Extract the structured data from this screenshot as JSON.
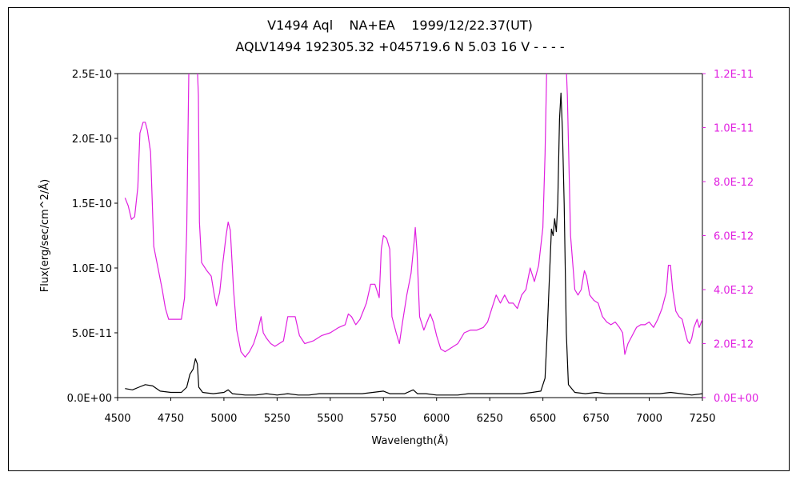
{
  "chart_data": {
    "type": "line",
    "title": "V1494 Aql    NA+EA    1999/12/22.37(UT)",
    "subtitle": "AQLV1494 192305.32 +045719.6 N 5.03 16 V - - - -",
    "xlabel": "Wavelength(Å)",
    "ylabel": "Flux(erg/sec/cm^2/Å)",
    "xlim": [
      4500,
      7250
    ],
    "ylim": [
      0,
      2.5e-10
    ],
    "y2lim": [
      0,
      1.2e-11
    ],
    "x_ticks": [
      "4500",
      "4750",
      "5000",
      "5250",
      "5500",
      "5750",
      "6000",
      "6250",
      "6500",
      "6750",
      "7000",
      "7250"
    ],
    "y_ticks": [
      "0.0E+00",
      "5.0E-11",
      "1.0E-10",
      "1.5E-10",
      "2.0E-10",
      "2.5E-10"
    ],
    "y2_ticks": [
      "0.0E+00",
      "2.0E-12",
      "4.0E-12",
      "6.0E-12",
      "8.0E-12",
      "1.0E-11",
      "1.2E-11"
    ],
    "grid": false,
    "colors": {
      "primary": "#000000",
      "secondary": "#e020e0",
      "axis": "#000000"
    },
    "series": [
      {
        "axis": "left",
        "color": "#000000",
        "points": [
          [
            4535,
            7e-12
          ],
          [
            4570,
            6e-12
          ],
          [
            4600,
            8e-12
          ],
          [
            4630,
            1e-11
          ],
          [
            4665,
            9e-12
          ],
          [
            4700,
            5e-12
          ],
          [
            4750,
            4e-12
          ],
          [
            4800,
            4e-12
          ],
          [
            4825,
            8e-12
          ],
          [
            4840,
            1.8e-11
          ],
          [
            4855,
            2.2e-11
          ],
          [
            4866,
            3e-11
          ],
          [
            4875,
            2.6e-11
          ],
          [
            4882,
            8e-12
          ],
          [
            4900,
            4e-12
          ],
          [
            4950,
            3e-12
          ],
          [
            5000,
            4e-12
          ],
          [
            5020,
            6e-12
          ],
          [
            5040,
            3e-12
          ],
          [
            5100,
            2e-12
          ],
          [
            5150,
            2e-12
          ],
          [
            5200,
            3e-12
          ],
          [
            5250,
            2e-12
          ],
          [
            5300,
            3e-12
          ],
          [
            5350,
            2e-12
          ],
          [
            5400,
            2e-12
          ],
          [
            5450,
            3e-12
          ],
          [
            5500,
            3e-12
          ],
          [
            5550,
            3e-12
          ],
          [
            5600,
            3e-12
          ],
          [
            5650,
            3e-12
          ],
          [
            5700,
            4e-12
          ],
          [
            5750,
            5e-12
          ],
          [
            5780,
            3e-12
          ],
          [
            5850,
            3e-12
          ],
          [
            5890,
            6e-12
          ],
          [
            5910,
            3e-12
          ],
          [
            5950,
            3e-12
          ],
          [
            6000,
            2e-12
          ],
          [
            6050,
            2e-12
          ],
          [
            6100,
            2e-12
          ],
          [
            6150,
            3e-12
          ],
          [
            6200,
            3e-12
          ],
          [
            6250,
            3e-12
          ],
          [
            6300,
            3e-12
          ],
          [
            6350,
            3e-12
          ],
          [
            6400,
            3e-12
          ],
          [
            6450,
            4e-12
          ],
          [
            6490,
            5e-12
          ],
          [
            6510,
            1.5e-11
          ],
          [
            6520,
            5e-11
          ],
          [
            6530,
            9e-11
          ],
          [
            6540,
            1.3e-10
          ],
          [
            6548,
            1.25e-10
          ],
          [
            6555,
            1.38e-10
          ],
          [
            6563,
            1.28e-10
          ],
          [
            6570,
            1.5e-10
          ],
          [
            6578,
            2.15e-10
          ],
          [
            6585,
            2.35e-10
          ],
          [
            6592,
            2.05e-10
          ],
          [
            6600,
            1.5e-10
          ],
          [
            6610,
            5e-11
          ],
          [
            6620,
            1e-11
          ],
          [
            6650,
            4e-12
          ],
          [
            6700,
            3e-12
          ],
          [
            6750,
            4e-12
          ],
          [
            6800,
            3e-12
          ],
          [
            6850,
            3e-12
          ],
          [
            6900,
            3e-12
          ],
          [
            6950,
            3e-12
          ],
          [
            7000,
            3e-12
          ],
          [
            7050,
            3e-12
          ],
          [
            7100,
            4e-12
          ],
          [
            7150,
            3e-12
          ],
          [
            7200,
            2e-12
          ],
          [
            7250,
            3e-12
          ]
        ]
      },
      {
        "axis": "right",
        "color": "#e020e0",
        "points": [
          [
            4535,
            7.4e-12
          ],
          [
            4550,
            7.1e-12
          ],
          [
            4565,
            6.6e-12
          ],
          [
            4580,
            6.7e-12
          ],
          [
            4595,
            7.8e-12
          ],
          [
            4605,
            9.8e-12
          ],
          [
            4620,
            1.02e-11
          ],
          [
            4630,
            1.02e-11
          ],
          [
            4640,
            9.9e-12
          ],
          [
            4655,
            9.1e-12
          ],
          [
            4670,
            5.6e-12
          ],
          [
            4690,
            4.8e-12
          ],
          [
            4710,
            4e-12
          ],
          [
            4725,
            3.3e-12
          ],
          [
            4740,
            2.9e-12
          ],
          [
            4760,
            2.9e-12
          ],
          [
            4780,
            2.9e-12
          ],
          [
            4800,
            2.9e-12
          ],
          [
            4815,
            3.7e-12
          ],
          [
            4825,
            6.2e-12
          ],
          [
            4835,
            1.2e-11
          ],
          [
            4850,
            1.22e-11
          ],
          [
            4870,
            1.22e-11
          ],
          [
            4875,
            1.22e-11
          ],
          [
            4880,
            1.12e-11
          ],
          [
            4885,
            6.5e-12
          ],
          [
            4895,
            5e-12
          ],
          [
            4920,
            4.7e-12
          ],
          [
            4940,
            4.5e-12
          ],
          [
            4955,
            3.8e-12
          ],
          [
            4965,
            3.4e-12
          ],
          [
            4980,
            3.9e-12
          ],
          [
            4995,
            5e-12
          ],
          [
            5010,
            6e-12
          ],
          [
            5020,
            6.5e-12
          ],
          [
            5030,
            6.2e-12
          ],
          [
            5045,
            4e-12
          ],
          [
            5060,
            2.5e-12
          ],
          [
            5080,
            1.7e-12
          ],
          [
            5100,
            1.5e-12
          ],
          [
            5120,
            1.7e-12
          ],
          [
            5140,
            2e-12
          ],
          [
            5160,
            2.5e-12
          ],
          [
            5175,
            3e-12
          ],
          [
            5185,
            2.4e-12
          ],
          [
            5200,
            2.2e-12
          ],
          [
            5220,
            2e-12
          ],
          [
            5240,
            1.9e-12
          ],
          [
            5260,
            2e-12
          ],
          [
            5280,
            2.1e-12
          ],
          [
            5300,
            3e-12
          ],
          [
            5320,
            3e-12
          ],
          [
            5335,
            3e-12
          ],
          [
            5355,
            2.3e-12
          ],
          [
            5380,
            2e-12
          ],
          [
            5420,
            2.1e-12
          ],
          [
            5460,
            2.3e-12
          ],
          [
            5500,
            2.4e-12
          ],
          [
            5540,
            2.6e-12
          ],
          [
            5570,
            2.7e-12
          ],
          [
            5585,
            3.1e-12
          ],
          [
            5600,
            3e-12
          ],
          [
            5620,
            2.7e-12
          ],
          [
            5640,
            2.9e-12
          ],
          [
            5670,
            3.5e-12
          ],
          [
            5690,
            4.2e-12
          ],
          [
            5710,
            4.2e-12
          ],
          [
            5730,
            3.7e-12
          ],
          [
            5740,
            5.5e-12
          ],
          [
            5750,
            6e-12
          ],
          [
            5765,
            5.9e-12
          ],
          [
            5780,
            5.5e-12
          ],
          [
            5790,
            3e-12
          ],
          [
            5810,
            2.4e-12
          ],
          [
            5825,
            2e-12
          ],
          [
            5840,
            2.8e-12
          ],
          [
            5860,
            3.8e-12
          ],
          [
            5880,
            4.6e-12
          ],
          [
            5895,
            5.8e-12
          ],
          [
            5900,
            6.3e-12
          ],
          [
            5908,
            5.4e-12
          ],
          [
            5920,
            3e-12
          ],
          [
            5940,
            2.5e-12
          ],
          [
            5955,
            2.8e-12
          ],
          [
            5970,
            3.1e-12
          ],
          [
            5985,
            2.8e-12
          ],
          [
            6000,
            2.3e-12
          ],
          [
            6020,
            1.8e-12
          ],
          [
            6040,
            1.7e-12
          ],
          [
            6060,
            1.8e-12
          ],
          [
            6080,
            1.9e-12
          ],
          [
            6100,
            2e-12
          ],
          [
            6130,
            2.4e-12
          ],
          [
            6160,
            2.5e-12
          ],
          [
            6190,
            2.5e-12
          ],
          [
            6220,
            2.6e-12
          ],
          [
            6240,
            2.8e-12
          ],
          [
            6260,
            3.3e-12
          ],
          [
            6280,
            3.8e-12
          ],
          [
            6300,
            3.5e-12
          ],
          [
            6320,
            3.8e-12
          ],
          [
            6340,
            3.5e-12
          ],
          [
            6360,
            3.5e-12
          ],
          [
            6380,
            3.3e-12
          ],
          [
            6400,
            3.8e-12
          ],
          [
            6420,
            4e-12
          ],
          [
            6440,
            4.8e-12
          ],
          [
            6460,
            4.3e-12
          ],
          [
            6480,
            4.9e-12
          ],
          [
            6500,
            6.3e-12
          ],
          [
            6510,
            9e-12
          ],
          [
            6518,
            1.22e-11
          ],
          [
            6610,
            1.22e-11
          ],
          [
            6615,
            1.12e-11
          ],
          [
            6630,
            6e-12
          ],
          [
            6650,
            4e-12
          ],
          [
            6665,
            3.8e-12
          ],
          [
            6680,
            4e-12
          ],
          [
            6695,
            4.7e-12
          ],
          [
            6705,
            4.5e-12
          ],
          [
            6720,
            3.8e-12
          ],
          [
            6740,
            3.6e-12
          ],
          [
            6760,
            3.5e-12
          ],
          [
            6780,
            3e-12
          ],
          [
            6800,
            2.8e-12
          ],
          [
            6820,
            2.7e-12
          ],
          [
            6840,
            2.8e-12
          ],
          [
            6860,
            2.6e-12
          ],
          [
            6875,
            2.4e-12
          ],
          [
            6885,
            1.6e-12
          ],
          [
            6900,
            2e-12
          ],
          [
            6920,
            2.3e-12
          ],
          [
            6940,
            2.6e-12
          ],
          [
            6960,
            2.7e-12
          ],
          [
            6980,
            2.7e-12
          ],
          [
            7000,
            2.8e-12
          ],
          [
            7020,
            2.6e-12
          ],
          [
            7040,
            2.9e-12
          ],
          [
            7060,
            3.3e-12
          ],
          [
            7080,
            3.9e-12
          ],
          [
            7090,
            4.9e-12
          ],
          [
            7100,
            4.9e-12
          ],
          [
            7110,
            4e-12
          ],
          [
            7125,
            3.2e-12
          ],
          [
            7140,
            3e-12
          ],
          [
            7155,
            2.9e-12
          ],
          [
            7170,
            2.4e-12
          ],
          [
            7180,
            2.1e-12
          ],
          [
            7190,
            2e-12
          ],
          [
            7200,
            2.2e-12
          ],
          [
            7210,
            2.6e-12
          ],
          [
            7225,
            2.9e-12
          ],
          [
            7235,
            2.6e-12
          ],
          [
            7250,
            2.9e-12
          ]
        ]
      }
    ]
  }
}
